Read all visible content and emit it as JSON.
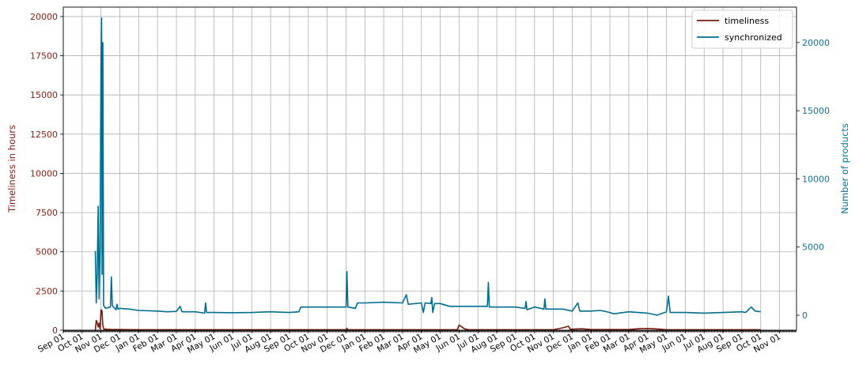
{
  "chart_data": {
    "type": "line",
    "title": "",
    "xlabel": "",
    "x_ticks": [
      "Sep 01",
      "Oct 01",
      "Nov 01",
      "Dec 01",
      "Jan 01",
      "Feb 01",
      "Mar 01",
      "Apr 01",
      "May 01",
      "Jun 01",
      "Jul 01",
      "Aug 01",
      "Sep 01",
      "Oct 01",
      "Nov 01",
      "Dec 01",
      "Jan 01",
      "Feb 01",
      "Mar 01",
      "Apr 01",
      "May 01",
      "Jun 01",
      "Jul 01",
      "Aug 01",
      "Sep 01",
      "Oct 01",
      "Nov 01",
      "Dec 01",
      "Jan 01",
      "Feb 01",
      "Mar 01",
      "Apr 01",
      "May 01",
      "Jun 01",
      "Jul 01",
      "Aug 01",
      "Sep 01",
      "Oct 01",
      "Nov 01"
    ],
    "x_range_months": [
      0,
      38.9
    ],
    "y_left": {
      "label": "Timeliness in hours",
      "ticks": [
        0,
        2500,
        5000,
        7500,
        10000,
        12500,
        15000,
        17500,
        20000
      ],
      "range": [
        0,
        20600
      ],
      "color": "#8b1a0e"
    },
    "y_right": {
      "label": "Number of products",
      "ticks": [
        0,
        5000,
        10000,
        15000,
        20000
      ],
      "range": [
        -1100,
        22600
      ],
      "color": "#0e7490"
    },
    "legend": {
      "position": "top-right"
    },
    "grid": true,
    "series": [
      {
        "name": "timeliness",
        "axis": "left",
        "color": "#7a1a0c",
        "points": [
          [
            1.7,
            0
          ],
          [
            1.75,
            620
          ],
          [
            1.8,
            480
          ],
          [
            1.85,
            200
          ],
          [
            1.9,
            450
          ],
          [
            1.95,
            80
          ],
          [
            2.0,
            1300
          ],
          [
            2.05,
            1250
          ],
          [
            2.1,
            300
          ],
          [
            2.15,
            80
          ],
          [
            2.3,
            60
          ],
          [
            2.6,
            40
          ],
          [
            3.0,
            40
          ],
          [
            4.0,
            30
          ],
          [
            6.0,
            30
          ],
          [
            9.0,
            30
          ],
          [
            12.0,
            30
          ],
          [
            15.0,
            30
          ],
          [
            15.05,
            120
          ],
          [
            15.1,
            30
          ],
          [
            18.0,
            30
          ],
          [
            20.9,
            30
          ],
          [
            21.0,
            320
          ],
          [
            21.3,
            80
          ],
          [
            21.5,
            30
          ],
          [
            24.0,
            30
          ],
          [
            26.0,
            30
          ],
          [
            26.5,
            150
          ],
          [
            26.8,
            250
          ],
          [
            26.9,
            60
          ],
          [
            27.5,
            90
          ],
          [
            28.0,
            40
          ],
          [
            30.0,
            40
          ],
          [
            30.5,
            90
          ],
          [
            31.0,
            110
          ],
          [
            31.5,
            80
          ],
          [
            32.0,
            30
          ],
          [
            35.0,
            30
          ],
          [
            37.0,
            30
          ]
        ]
      },
      {
        "name": "synchronized",
        "axis": "right",
        "color": "#006e8f",
        "points": [
          [
            1.7,
            4700
          ],
          [
            1.75,
            900
          ],
          [
            1.8,
            3000
          ],
          [
            1.85,
            8000
          ],
          [
            1.9,
            1200
          ],
          [
            1.95,
            5000
          ],
          [
            2.0,
            19000
          ],
          [
            2.03,
            21800
          ],
          [
            2.06,
            3000
          ],
          [
            2.1,
            20000
          ],
          [
            2.14,
            700
          ],
          [
            2.25,
            500
          ],
          [
            2.5,
            600
          ],
          [
            2.55,
            2800
          ],
          [
            2.6,
            700
          ],
          [
            2.8,
            400
          ],
          [
            2.85,
            800
          ],
          [
            2.9,
            450
          ],
          [
            3.0,
            500
          ],
          [
            3.5,
            450
          ],
          [
            4.0,
            350
          ],
          [
            5.0,
            300
          ],
          [
            5.5,
            250
          ],
          [
            6.0,
            280
          ],
          [
            6.2,
            650
          ],
          [
            6.3,
            250
          ],
          [
            7.0,
            250
          ],
          [
            7.5,
            150
          ],
          [
            7.55,
            900
          ],
          [
            7.6,
            200
          ],
          [
            8.0,
            200
          ],
          [
            9.0,
            180
          ],
          [
            10.0,
            200
          ],
          [
            11.0,
            250
          ],
          [
            12.0,
            200
          ],
          [
            12.5,
            250
          ],
          [
            12.6,
            600
          ],
          [
            13.0,
            600
          ],
          [
            14.0,
            600
          ],
          [
            15.0,
            600
          ],
          [
            15.05,
            3200
          ],
          [
            15.1,
            600
          ],
          [
            15.5,
            500
          ],
          [
            15.6,
            900
          ],
          [
            16.0,
            900
          ],
          [
            17.0,
            950
          ],
          [
            18.0,
            900
          ],
          [
            18.2,
            1500
          ],
          [
            18.3,
            800
          ],
          [
            19.0,
            900
          ],
          [
            19.1,
            200
          ],
          [
            19.2,
            900
          ],
          [
            19.5,
            850
          ],
          [
            19.55,
            1300
          ],
          [
            19.6,
            200
          ],
          [
            19.7,
            850
          ],
          [
            20.0,
            850
          ],
          [
            20.5,
            650
          ],
          [
            21.0,
            650
          ],
          [
            22.0,
            650
          ],
          [
            22.5,
            650
          ],
          [
            22.55,
            2400
          ],
          [
            22.6,
            600
          ],
          [
            23.0,
            600
          ],
          [
            24.0,
            600
          ],
          [
            24.5,
            500
          ],
          [
            24.55,
            1000
          ],
          [
            24.6,
            400
          ],
          [
            25.0,
            600
          ],
          [
            25.5,
            450
          ],
          [
            25.55,
            1200
          ],
          [
            25.6,
            450
          ],
          [
            26.0,
            450
          ],
          [
            26.5,
            450
          ],
          [
            27.0,
            300
          ],
          [
            27.3,
            900
          ],
          [
            27.4,
            300
          ],
          [
            28.0,
            300
          ],
          [
            28.5,
            350
          ],
          [
            29.0,
            200
          ],
          [
            29.2,
            100
          ],
          [
            30.0,
            250
          ],
          [
            30.5,
            200
          ],
          [
            31.0,
            150
          ],
          [
            31.5,
            0
          ],
          [
            32.0,
            250
          ],
          [
            32.1,
            1400
          ],
          [
            32.2,
            200
          ],
          [
            33.0,
            200
          ],
          [
            34.0,
            150
          ],
          [
            35.0,
            200
          ],
          [
            36.0,
            250
          ],
          [
            36.2,
            200
          ],
          [
            36.5,
            600
          ],
          [
            36.7,
            300
          ],
          [
            37.0,
            250
          ]
        ]
      }
    ]
  }
}
